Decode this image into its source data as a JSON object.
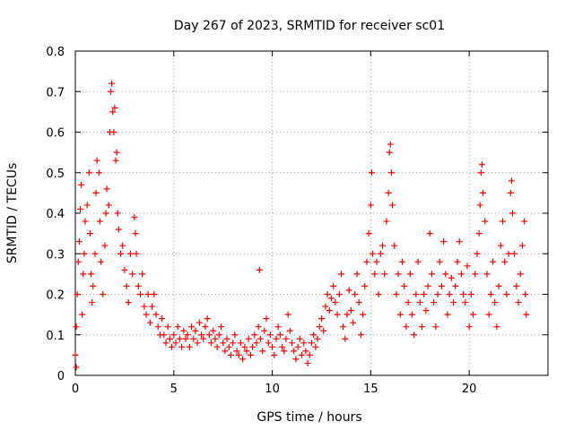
{
  "chart_data": {
    "type": "scatter",
    "title": "Day 267 of 2023, SRMTID for receiver sc01",
    "xlabel": "GPS time / hours",
    "ylabel": "SRMTID / TECUs",
    "xlim": [
      0,
      24
    ],
    "ylim": [
      0,
      0.8
    ],
    "x_ticks": [
      0,
      5,
      10,
      15,
      20
    ],
    "x_tick_labels": [
      "0",
      "5",
      "10",
      "15",
      "20"
    ],
    "y_ticks": [
      0,
      0.1,
      0.2,
      0.3,
      0.4,
      0.5,
      0.6,
      0.7,
      0.8
    ],
    "y_tick_labels": [
      "0",
      "0.1",
      "0.2",
      "0.3",
      "0.4",
      "0.5",
      "0.6",
      "0.7",
      "0.8"
    ],
    "grid": true,
    "marker": "plus",
    "series": [
      {
        "name": "SRMTID",
        "color": "#ff0000",
        "points": [
          [
            0.0,
            0.05
          ],
          [
            0.05,
            0.02
          ],
          [
            0.05,
            0.12
          ],
          [
            0.1,
            0.2
          ],
          [
            0.15,
            0.28
          ],
          [
            0.2,
            0.33
          ],
          [
            0.25,
            0.41
          ],
          [
            0.3,
            0.47
          ],
          [
            0.35,
            0.15
          ],
          [
            0.4,
            0.25
          ],
          [
            0.45,
            0.3
          ],
          [
            0.5,
            0.38
          ],
          [
            0.6,
            0.42
          ],
          [
            0.7,
            0.5
          ],
          [
            0.75,
            0.35
          ],
          [
            0.8,
            0.25
          ],
          [
            0.85,
            0.18
          ],
          [
            0.9,
            0.22
          ],
          [
            1.0,
            0.3
          ],
          [
            1.05,
            0.45
          ],
          [
            1.1,
            0.53
          ],
          [
            1.2,
            0.5
          ],
          [
            1.25,
            0.38
          ],
          [
            1.3,
            0.28
          ],
          [
            1.4,
            0.2
          ],
          [
            1.5,
            0.32
          ],
          [
            1.55,
            0.4
          ],
          [
            1.6,
            0.46
          ],
          [
            1.7,
            0.42
          ],
          [
            1.75,
            0.6
          ],
          [
            1.8,
            0.7
          ],
          [
            1.85,
            0.72
          ],
          [
            1.9,
            0.65
          ],
          [
            1.95,
            0.6
          ],
          [
            2.0,
            0.66
          ],
          [
            2.05,
            0.53
          ],
          [
            2.1,
            0.55
          ],
          [
            2.15,
            0.4
          ],
          [
            2.2,
            0.36
          ],
          [
            2.3,
            0.3
          ],
          [
            2.4,
            0.32
          ],
          [
            2.5,
            0.26
          ],
          [
            2.6,
            0.22
          ],
          [
            2.7,
            0.18
          ],
          [
            2.8,
            0.3
          ],
          [
            2.9,
            0.25
          ],
          [
            3.0,
            0.39
          ],
          [
            3.05,
            0.35
          ],
          [
            3.1,
            0.3
          ],
          [
            3.2,
            0.22
          ],
          [
            3.3,
            0.2
          ],
          [
            3.4,
            0.25
          ],
          [
            3.5,
            0.17
          ],
          [
            3.6,
            0.15
          ],
          [
            3.7,
            0.2
          ],
          [
            3.8,
            0.13
          ],
          [
            3.9,
            0.17
          ],
          [
            4.0,
            0.2
          ],
          [
            4.1,
            0.15
          ],
          [
            4.2,
            0.12
          ],
          [
            4.3,
            0.1
          ],
          [
            4.4,
            0.14
          ],
          [
            4.5,
            0.1
          ],
          [
            4.6,
            0.08
          ],
          [
            4.7,
            0.12
          ],
          [
            4.8,
            0.09
          ],
          [
            4.9,
            0.07
          ],
          [
            5.0,
            0.1
          ],
          [
            5.1,
            0.08
          ],
          [
            5.2,
            0.12
          ],
          [
            5.3,
            0.09
          ],
          [
            5.4,
            0.07
          ],
          [
            5.5,
            0.11
          ],
          [
            5.6,
            0.09
          ],
          [
            5.7,
            0.1
          ],
          [
            5.8,
            0.07
          ],
          [
            5.9,
            0.12
          ],
          [
            6.0,
            0.09
          ],
          [
            6.1,
            0.11
          ],
          [
            6.2,
            0.08
          ],
          [
            6.3,
            0.13
          ],
          [
            6.4,
            0.1
          ],
          [
            6.5,
            0.09
          ],
          [
            6.6,
            0.12
          ],
          [
            6.7,
            0.14
          ],
          [
            6.8,
            0.1
          ],
          [
            6.9,
            0.08
          ],
          [
            7.0,
            0.11
          ],
          [
            7.1,
            0.09
          ],
          [
            7.2,
            0.07
          ],
          [
            7.3,
            0.1
          ],
          [
            7.4,
            0.12
          ],
          [
            7.5,
            0.08
          ],
          [
            7.6,
            0.06
          ],
          [
            7.7,
            0.09
          ],
          [
            7.8,
            0.07
          ],
          [
            7.9,
            0.05
          ],
          [
            8.0,
            0.08
          ],
          [
            8.1,
            0.1
          ],
          [
            8.2,
            0.06
          ],
          [
            8.3,
            0.05
          ],
          [
            8.4,
            0.08
          ],
          [
            8.5,
            0.04
          ],
          [
            8.6,
            0.07
          ],
          [
            8.7,
            0.06
          ],
          [
            8.8,
            0.09
          ],
          [
            8.9,
            0.05
          ],
          [
            9.0,
            0.07
          ],
          [
            9.1,
            0.1
          ],
          [
            9.2,
            0.08
          ],
          [
            9.3,
            0.12
          ],
          [
            9.35,
            0.26
          ],
          [
            9.4,
            0.09
          ],
          [
            9.5,
            0.06
          ],
          [
            9.6,
            0.11
          ],
          [
            9.7,
            0.14
          ],
          [
            9.8,
            0.08
          ],
          [
            9.9,
            0.1
          ],
          [
            10.0,
            0.07
          ],
          [
            10.1,
            0.05
          ],
          [
            10.2,
            0.09
          ],
          [
            10.3,
            0.12
          ],
          [
            10.4,
            0.1
          ],
          [
            10.5,
            0.07
          ],
          [
            10.6,
            0.06
          ],
          [
            10.7,
            0.09
          ],
          [
            10.8,
            0.15
          ],
          [
            10.9,
            0.11
          ],
          [
            11.0,
            0.08
          ],
          [
            11.1,
            0.06
          ],
          [
            11.2,
            0.04
          ],
          [
            11.3,
            0.07
          ],
          [
            11.4,
            0.09
          ],
          [
            11.5,
            0.05
          ],
          [
            11.6,
            0.08
          ],
          [
            11.7,
            0.06
          ],
          [
            11.8,
            0.03
          ],
          [
            11.9,
            0.05
          ],
          [
            12.0,
            0.08
          ],
          [
            12.1,
            0.1
          ],
          [
            12.2,
            0.07
          ],
          [
            12.3,
            0.09
          ],
          [
            12.4,
            0.12
          ],
          [
            12.5,
            0.14
          ],
          [
            12.6,
            0.11
          ],
          [
            12.7,
            0.17
          ],
          [
            12.8,
            0.2
          ],
          [
            12.9,
            0.16
          ],
          [
            13.0,
            0.19
          ],
          [
            13.1,
            0.22
          ],
          [
            13.2,
            0.18
          ],
          [
            13.3,
            0.15
          ],
          [
            13.4,
            0.2
          ],
          [
            13.5,
            0.25
          ],
          [
            13.6,
            0.12
          ],
          [
            13.7,
            0.09
          ],
          [
            13.8,
            0.15
          ],
          [
            13.9,
            0.21
          ],
          [
            14.0,
            0.16
          ],
          [
            14.1,
            0.13
          ],
          [
            14.2,
            0.2
          ],
          [
            14.3,
            0.25
          ],
          [
            14.4,
            0.18
          ],
          [
            14.5,
            0.1
          ],
          [
            14.6,
            0.15
          ],
          [
            14.7,
            0.22
          ],
          [
            14.8,
            0.28
          ],
          [
            14.9,
            0.35
          ],
          [
            15.0,
            0.42
          ],
          [
            15.05,
            0.5
          ],
          [
            15.1,
            0.3
          ],
          [
            15.2,
            0.25
          ],
          [
            15.3,
            0.28
          ],
          [
            15.4,
            0.2
          ],
          [
            15.5,
            0.3
          ],
          [
            15.6,
            0.32
          ],
          [
            15.7,
            0.25
          ],
          [
            15.8,
            0.38
          ],
          [
            15.9,
            0.45
          ],
          [
            15.95,
            0.55
          ],
          [
            16.0,
            0.57
          ],
          [
            16.05,
            0.5
          ],
          [
            16.1,
            0.42
          ],
          [
            16.2,
            0.32
          ],
          [
            16.3,
            0.2
          ],
          [
            16.4,
            0.25
          ],
          [
            16.5,
            0.15
          ],
          [
            16.6,
            0.28
          ],
          [
            16.7,
            0.22
          ],
          [
            16.8,
            0.12
          ],
          [
            16.9,
            0.18
          ],
          [
            17.0,
            0.25
          ],
          [
            17.1,
            0.15
          ],
          [
            17.2,
            0.1
          ],
          [
            17.3,
            0.2
          ],
          [
            17.4,
            0.28
          ],
          [
            17.5,
            0.18
          ],
          [
            17.6,
            0.12
          ],
          [
            17.7,
            0.2
          ],
          [
            17.8,
            0.16
          ],
          [
            17.9,
            0.22
          ],
          [
            18.0,
            0.35
          ],
          [
            18.1,
            0.25
          ],
          [
            18.2,
            0.18
          ],
          [
            18.3,
            0.12
          ],
          [
            18.4,
            0.2
          ],
          [
            18.5,
            0.28
          ],
          [
            18.6,
            0.22
          ],
          [
            18.7,
            0.33
          ],
          [
            18.8,
            0.25
          ],
          [
            18.9,
            0.15
          ],
          [
            19.0,
            0.2
          ],
          [
            19.1,
            0.24
          ],
          [
            19.2,
            0.18
          ],
          [
            19.3,
            0.22
          ],
          [
            19.4,
            0.28
          ],
          [
            19.5,
            0.33
          ],
          [
            19.6,
            0.25
          ],
          [
            19.7,
            0.2
          ],
          [
            19.8,
            0.18
          ],
          [
            19.9,
            0.27
          ],
          [
            20.0,
            0.12
          ],
          [
            20.1,
            0.2
          ],
          [
            20.2,
            0.15
          ],
          [
            20.3,
            0.25
          ],
          [
            20.4,
            0.3
          ],
          [
            20.5,
            0.35
          ],
          [
            20.55,
            0.42
          ],
          [
            20.6,
            0.5
          ],
          [
            20.65,
            0.52
          ],
          [
            20.7,
            0.45
          ],
          [
            20.8,
            0.38
          ],
          [
            20.9,
            0.25
          ],
          [
            21.0,
            0.15
          ],
          [
            21.1,
            0.2
          ],
          [
            21.2,
            0.28
          ],
          [
            21.3,
            0.18
          ],
          [
            21.4,
            0.12
          ],
          [
            21.5,
            0.22
          ],
          [
            21.6,
            0.32
          ],
          [
            21.7,
            0.38
          ],
          [
            21.8,
            0.28
          ],
          [
            21.9,
            0.2
          ],
          [
            22.0,
            0.3
          ],
          [
            22.1,
            0.45
          ],
          [
            22.15,
            0.48
          ],
          [
            22.2,
            0.4
          ],
          [
            22.3,
            0.3
          ],
          [
            22.4,
            0.22
          ],
          [
            22.5,
            0.18
          ],
          [
            22.6,
            0.25
          ],
          [
            22.7,
            0.32
          ],
          [
            22.8,
            0.38
          ],
          [
            22.85,
            0.2
          ],
          [
            22.9,
            0.15
          ]
        ]
      }
    ]
  }
}
